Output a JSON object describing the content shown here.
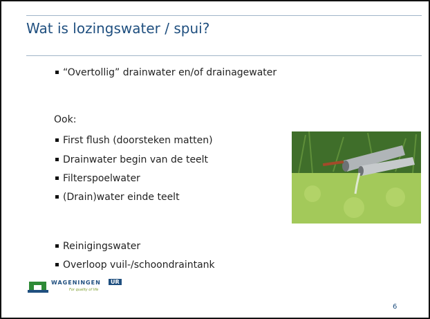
{
  "title": "Wat is lozingswater / spui?",
  "bullets": [
    "“Overtollig” drainwater en/of drainagewater"
  ],
  "section_label": "Ook:",
  "sub_bullets": [
    "First flush (doorsteken matten)",
    "Drainwater begin van de teelt",
    "Filterspoelwater",
    "(Drain)water einde teelt"
  ],
  "bullets_after": [
    "Reinigingswater",
    "Overloop vuil-/schoondraintank"
  ],
  "logo": {
    "name": "WAGENINGEN",
    "suffix": "UR",
    "tagline": "For quality of life"
  },
  "page_number": "6"
}
